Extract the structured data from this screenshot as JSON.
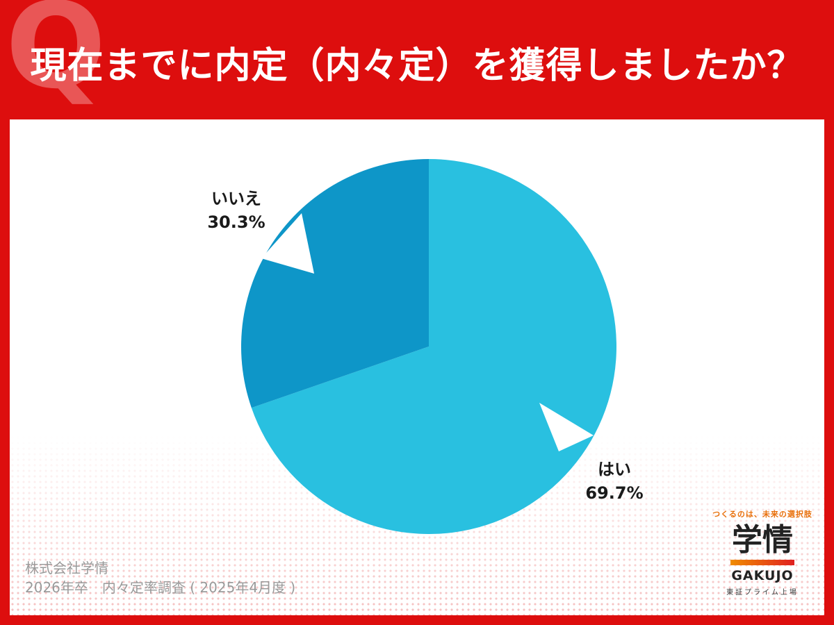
{
  "question_mark_letter": "Q",
  "question": "現在までに内定（内々定）を獲得しましたか？",
  "chart_data": {
    "type": "pie",
    "slices": [
      {
        "label": "はい",
        "value": 69.7,
        "value_label": "69.7%",
        "color": "#29c0e0"
      },
      {
        "label": "いいえ",
        "value": 30.3,
        "value_label": "30.3%",
        "color": "#0e96c8"
      }
    ]
  },
  "source": {
    "company": "株式会社学情",
    "survey": "2026年卒　内々定率調査 ( 2025年4月度 )"
  },
  "logo": {
    "tagline": "つくるのは、未来の選択肢",
    "name_kanji": "学情",
    "name_roman": "GAKUJO",
    "listing": "東証プライム上場"
  },
  "colors": {
    "background": "#dd0e0e",
    "panel": "#ffffff"
  }
}
